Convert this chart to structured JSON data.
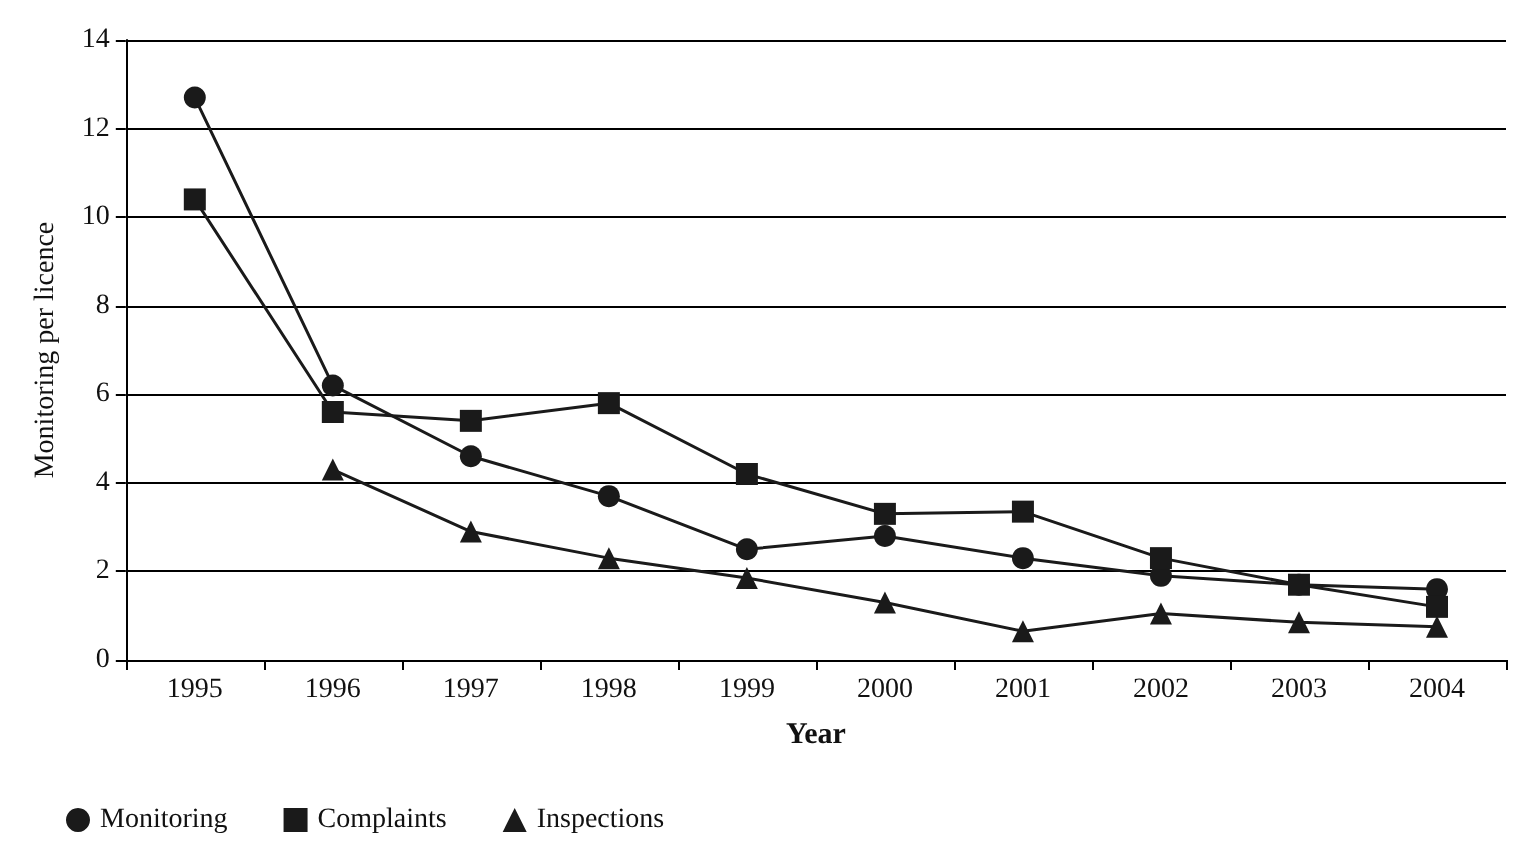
{
  "chart_data": {
    "type": "line",
    "xlabel": "Year",
    "ylabel": "Monitoring per licence",
    "categories": [
      "1995",
      "1996",
      "1997",
      "1998",
      "1999",
      "2000",
      "2001",
      "2002",
      "2003",
      "2004"
    ],
    "series": [
      {
        "name": "Monitoring",
        "color": "#1a1a1a",
        "marker": "circle",
        "values": [
          12.7,
          6.2,
          4.6,
          3.7,
          2.5,
          2.8,
          2.3,
          1.9,
          1.7,
          1.6
        ]
      },
      {
        "name": "Complaints",
        "color": "#1a1a1a",
        "marker": "square",
        "values": [
          10.4,
          5.6,
          5.4,
          5.8,
          4.2,
          3.3,
          3.35,
          2.3,
          1.7,
          1.2
        ]
      },
      {
        "name": "Inspections",
        "color": "#1a1a1a",
        "marker": "triangle",
        "values": [
          null,
          4.3,
          2.9,
          2.3,
          1.85,
          1.3,
          0.65,
          1.05,
          0.85,
          0.75
        ]
      }
    ],
    "ylim": [
      0,
      14
    ],
    "yticks": [
      0,
      2,
      4,
      6,
      8,
      10,
      12,
      14
    ],
    "grid": "y",
    "legend": "bottom left",
    "line_style": "solid"
  }
}
